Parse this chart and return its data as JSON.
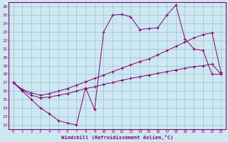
{
  "xlabel": "Windchill (Refroidissement éolien,°C)",
  "bg_color": "#cce8f0",
  "line_color": "#880077",
  "grid_color": "#8899bb",
  "xlim": [
    -0.5,
    23.5
  ],
  "ylim": [
    11.5,
    26.5
  ],
  "xticks": [
    0,
    1,
    2,
    3,
    4,
    5,
    6,
    7,
    8,
    9,
    10,
    11,
    12,
    13,
    14,
    15,
    16,
    17,
    18,
    19,
    20,
    21,
    22,
    23
  ],
  "yticks": [
    12,
    13,
    14,
    15,
    16,
    17,
    18,
    19,
    20,
    21,
    22,
    23,
    24,
    25,
    26
  ],
  "s1_x": [
    0,
    1,
    2,
    3,
    4,
    5,
    6,
    7,
    8,
    9,
    10,
    11,
    12,
    13,
    14,
    15,
    16,
    17,
    18,
    19,
    20,
    21,
    22,
    23
  ],
  "s1_y": [
    17.0,
    16.0,
    15.0,
    14.0,
    13.3,
    12.5,
    12.2,
    12.0,
    16.4,
    13.8,
    23.0,
    25.0,
    25.1,
    24.8,
    23.3,
    23.4,
    23.5,
    25.0,
    26.2,
    22.2,
    21.0,
    20.8,
    18.0,
    18.0
  ],
  "s2_x": [
    0,
    1,
    2,
    3,
    4,
    5,
    6,
    7,
    8,
    9,
    10,
    11,
    12,
    13,
    14,
    15,
    16,
    17,
    18,
    19,
    20,
    21,
    22,
    23
  ],
  "s2_y": [
    17.0,
    16.1,
    15.5,
    15.2,
    15.3,
    15.5,
    15.7,
    16.0,
    16.3,
    16.5,
    16.8,
    17.0,
    17.3,
    17.5,
    17.7,
    17.9,
    18.1,
    18.3,
    18.5,
    18.7,
    18.9,
    19.0,
    19.2,
    18.0
  ],
  "s3_x": [
    0,
    1,
    2,
    3,
    4,
    5,
    6,
    7,
    8,
    9,
    10,
    11,
    12,
    13,
    14,
    15,
    16,
    17,
    18,
    19,
    20,
    21,
    22,
    23
  ],
  "s3_y": [
    17.0,
    16.2,
    15.8,
    15.5,
    15.7,
    16.0,
    16.3,
    16.7,
    17.1,
    17.5,
    17.9,
    18.3,
    18.7,
    19.1,
    19.5,
    19.8,
    20.3,
    20.8,
    21.3,
    21.8,
    22.3,
    22.7,
    22.9,
    18.2
  ]
}
